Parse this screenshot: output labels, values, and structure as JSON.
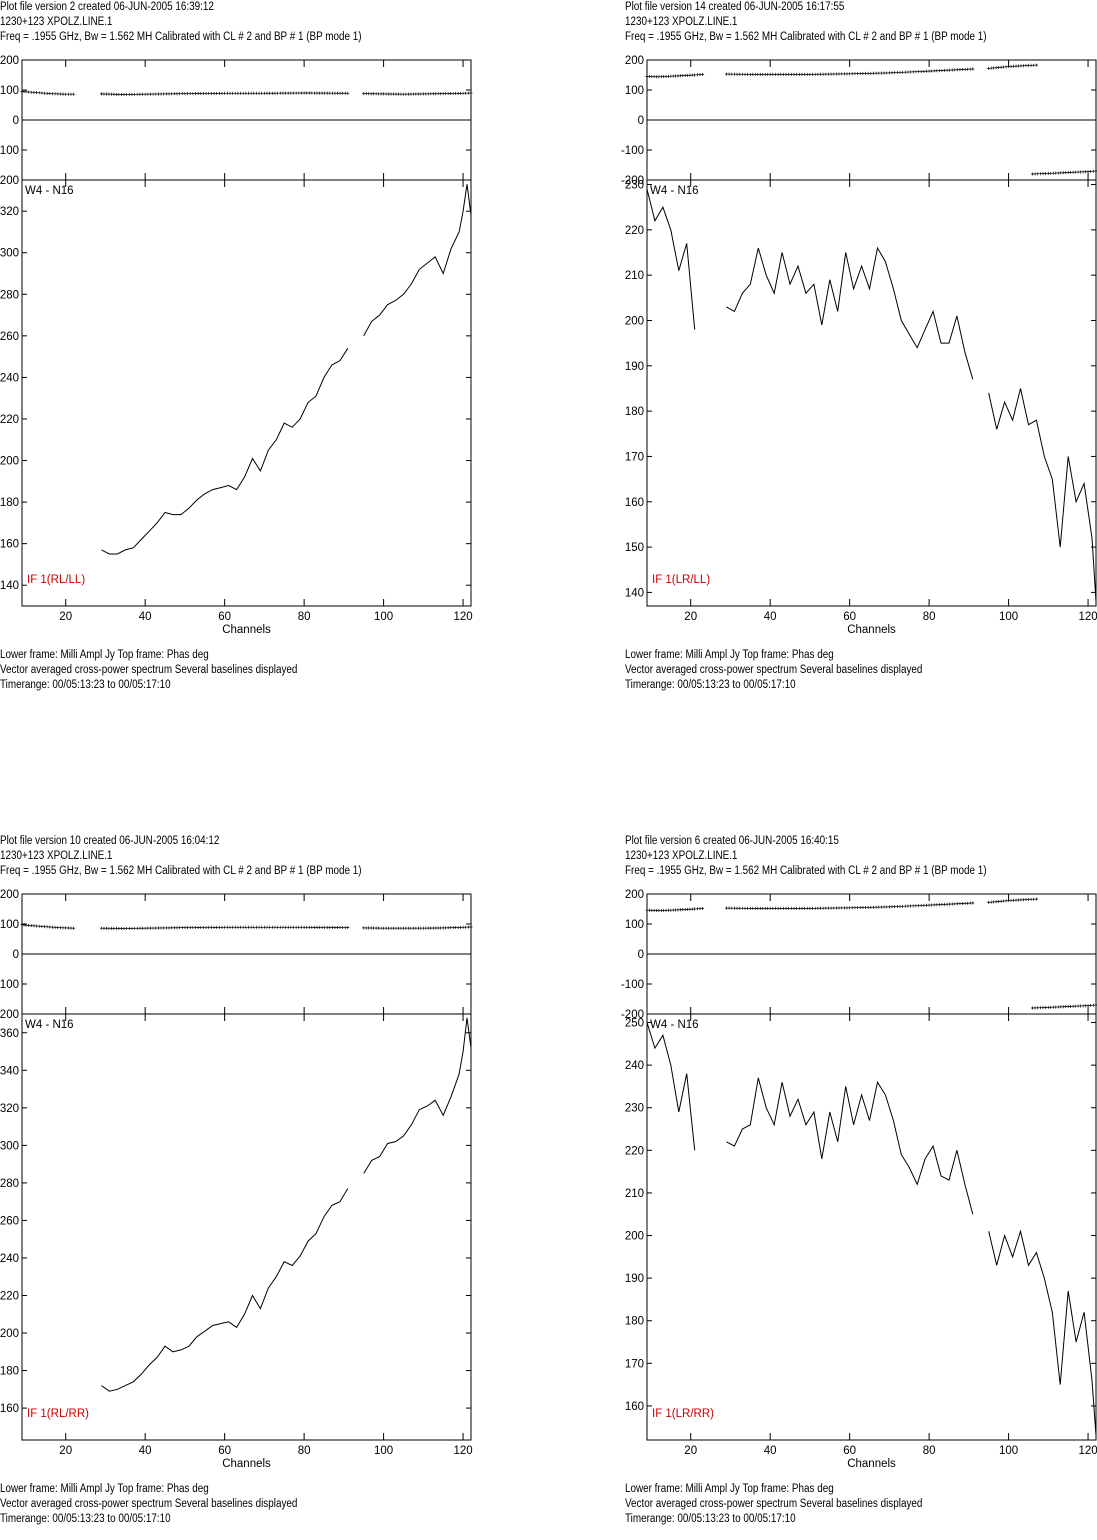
{
  "chart_data": [
    {
      "type": "line",
      "header": [
        "Plot file version 2  created 06-JUN-2005 16:39:12",
        "1230+123   XPOLZ.LINE.1",
        "Freq = .1955 GHz, Bw = 1.562 MH   Calibrated with CL # 2 and BP # 1 (BP mode 1)"
      ],
      "footer": [
        "Lower frame: Milli Ampl Jy   Top frame: Phas deg",
        "Vector averaged cross-power spectrum    Several baselines displayed",
        "Timerange: 00/05:13:23 to 00/05:17:10"
      ],
      "xlabel": "Channels",
      "xlim": [
        9,
        122
      ],
      "xticks": [
        20,
        40,
        60,
        80,
        100,
        120
      ],
      "baseline_label": "W4 - N16",
      "stokes_label": "IF 1(RL/LL)",
      "phase_frame": {
        "ylim": [
          -200,
          200
        ],
        "yticks": [
          200,
          100,
          0,
          -100,
          -200
        ],
        "segments": [
          {
            "x": [
              9,
              10,
              12,
              14,
              16,
              18,
              20,
              22
            ],
            "y": [
              95,
              94,
              92,
              90,
              88,
              87,
              86,
              86
            ]
          },
          {
            "x": [
              29,
              34,
              40,
              50,
              60,
              70,
              80,
              91
            ],
            "y": [
              87,
              85,
              86,
              88,
              89,
              89,
              90,
              89
            ]
          },
          {
            "x": [
              95,
              100,
              105,
              110,
              115,
              120,
              122
            ],
            "y": [
              88,
              87,
              86,
              87,
              88,
              89,
              90
            ]
          }
        ]
      },
      "amplitude_frame": {
        "ylim": [
          130,
          335
        ],
        "yticks": [
          320,
          300,
          280,
          260,
          240,
          220,
          200,
          180,
          160,
          140
        ],
        "segments": [
          {
            "x": [
              29,
              31,
              33,
              35,
              37,
              39,
              41,
              43,
              45,
              47,
              49,
              51,
              53,
              55,
              57,
              59,
              61,
              63,
              65,
              67,
              69,
              71,
              73,
              75,
              77,
              79,
              81,
              83,
              85,
              87,
              89,
              91
            ],
            "y": [
              157,
              155,
              155,
              157,
              158,
              162,
              166,
              170,
              175,
              174,
              174,
              177,
              181,
              184,
              186,
              187,
              188,
              186,
              192,
              201,
              195,
              205,
              210,
              218,
              216,
              220,
              228,
              231,
              240,
              246,
              248,
              254
            ]
          },
          {
            "x": [
              95,
              97,
              99,
              101,
              103,
              105,
              107,
              109,
              111,
              113,
              115,
              117,
              119,
              120,
              121,
              122
            ],
            "y": [
              260,
              267,
              270,
              275,
              277,
              280,
              285,
              292,
              295,
              298,
              290,
              302,
              310,
              320,
              333,
              318
            ]
          }
        ]
      }
    },
    {
      "type": "line",
      "header": [
        "Plot file version 14  created 06-JUN-2005 16:17:55",
        "1230+123   XPOLZ.LINE.1",
        "Freq = .1955 GHz, Bw = 1.562 MH   Calibrated with CL # 2 and BP # 1 (BP mode 1)"
      ],
      "footer": [
        "Lower frame: Milli Ampl Jy   Top frame: Phas deg",
        "Vector averaged cross-power spectrum    Several baselines displayed",
        "Timerange: 00/05:13:23 to 00/05:17:10"
      ],
      "xlabel": "Channels",
      "xlim": [
        9,
        122
      ],
      "xticks": [
        20,
        40,
        60,
        80,
        100,
        120
      ],
      "baseline_label": "W4 - N16",
      "stokes_label": "IF 1(LR/LL)",
      "phase_frame": {
        "ylim": [
          -200,
          200
        ],
        "yticks": [
          200,
          100,
          0,
          -100,
          -200
        ],
        "segments": [
          {
            "x": [
              9,
              12,
              15,
              18,
              21,
              23
            ],
            "y": [
              145,
              144,
              146,
              148,
              150,
              152
            ]
          },
          {
            "x": [
              29,
              35,
              40,
              50,
              60,
              70,
              80,
              91
            ],
            "y": [
              153,
              152,
              152,
              152,
              154,
              157,
              163,
              170
            ]
          },
          {
            "x": [
              95,
              100,
              105,
              107
            ],
            "y": [
              172,
              178,
              182,
              183
            ]
          },
          {
            "x": [
              106,
              110,
              115,
              120,
              122
            ],
            "y": [
              -180,
              -178,
              -175,
              -172,
              -170
            ]
          }
        ]
      },
      "amplitude_frame": {
        "ylim": [
          137,
          231
        ],
        "yticks": [
          230,
          220,
          210,
          200,
          190,
          180,
          170,
          160,
          150,
          140
        ],
        "segments": [
          {
            "x": [
              9,
              11,
              13,
              15,
              17,
              19,
              21
            ],
            "y": [
              229,
              222,
              225,
              220,
              211,
              217,
              198
            ]
          },
          {
            "x": [
              29,
              31,
              33,
              35,
              37,
              39,
              41,
              43,
              45,
              47,
              49,
              51,
              53,
              55,
              57,
              59,
              61,
              63,
              65,
              67,
              69,
              71,
              73,
              75,
              77,
              79,
              81,
              83,
              85,
              87,
              89,
              91
            ],
            "y": [
              203,
              202,
              206,
              208,
              216,
              210,
              206,
              215,
              208,
              212,
              206,
              208,
              199,
              209,
              202,
              215,
              207,
              212,
              207,
              216,
              213,
              207,
              200,
              197,
              194,
              198,
              202,
              195,
              195,
              201,
              193,
              187
            ]
          },
          {
            "x": [
              95,
              97,
              99,
              101,
              103,
              105,
              107,
              109,
              111,
              113,
              115,
              117,
              119,
              121,
              122
            ],
            "y": [
              184,
              176,
              182,
              178,
              185,
              177,
              178,
              170,
              165,
              150,
              170,
              160,
              164,
              152,
              138
            ]
          }
        ]
      }
    },
    {
      "type": "line",
      "header": [
        "Plot file version 10  created 06-JUN-2005 16:04:12",
        "1230+123   XPOLZ.LINE.1",
        "Freq = .1955 GHz, Bw = 1.562 MH   Calibrated with CL # 2 and BP # 1 (BP mode 1)"
      ],
      "footer": [
        "Lower frame: Milli Ampl Jy   Top frame: Phas deg",
        "Vector averaged cross-power spectrum    Several baselines displayed",
        "Timerange: 00/05:13:23 to 00/05:17:10"
      ],
      "xlabel": "Channels",
      "xlim": [
        9,
        122
      ],
      "xticks": [
        20,
        40,
        60,
        80,
        100,
        120
      ],
      "baseline_label": "W4 - N16",
      "stokes_label": "IF 1(RL/RR)",
      "phase_frame": {
        "ylim": [
          -200,
          200
        ],
        "yticks": [
          200,
          100,
          0,
          -100,
          -200
        ],
        "segments": [
          {
            "x": [
              9,
              10,
              12,
              14,
              16,
              18,
              20,
              22
            ],
            "y": [
              98,
              96,
              94,
              92,
              90,
              88,
              87,
              86
            ]
          },
          {
            "x": [
              29,
              34,
              40,
              50,
              60,
              70,
              80,
              91
            ],
            "y": [
              86,
              85,
              86,
              88,
              89,
              89,
              89,
              88
            ]
          },
          {
            "x": [
              95,
              100,
              105,
              110,
              115,
              120,
              122
            ],
            "y": [
              87,
              86,
              86,
              86,
              87,
              89,
              90
            ]
          }
        ]
      },
      "amplitude_frame": {
        "ylim": [
          143,
          370
        ],
        "yticks": [
          360,
          340,
          320,
          300,
          280,
          260,
          240,
          220,
          200,
          180,
          160
        ],
        "segments": [
          {
            "x": [
              29,
              31,
              33,
              35,
              37,
              39,
              41,
              43,
              45,
              47,
              49,
              51,
              53,
              55,
              57,
              59,
              61,
              63,
              65,
              67,
              69,
              71,
              73,
              75,
              77,
              79,
              81,
              83,
              85,
              87,
              89,
              91
            ],
            "y": [
              172,
              169,
              170,
              172,
              174,
              178,
              183,
              187,
              193,
              190,
              191,
              193,
              198,
              201,
              204,
              205,
              206,
              203,
              210,
              220,
              213,
              224,
              230,
              238,
              236,
              241,
              249,
              253,
              262,
              268,
              270,
              277
            ]
          },
          {
            "x": [
              95,
              97,
              99,
              101,
              103,
              105,
              107,
              109,
              111,
              113,
              115,
              117,
              119,
              120,
              121,
              122
            ],
            "y": [
              285,
              292,
              294,
              301,
              302,
              305,
              311,
              319,
              321,
              324,
              316,
              326,
              338,
              350,
              368,
              352
            ]
          }
        ]
      }
    },
    {
      "type": "line",
      "header": [
        "Plot file version 6  created 06-JUN-2005 16:40:15",
        "1230+123   XPOLZ.LINE.1",
        "Freq = .1955 GHz, Bw = 1.562 MH   Calibrated with CL # 2 and BP # 1 (BP mode 1)"
      ],
      "footer": [
        "Lower frame: Milli Ampl Jy   Top frame: Phas deg",
        "Vector averaged cross-power spectrum    Several baselines displayed",
        "Timerange: 00/05:13:23 to 00/05:17:10"
      ],
      "xlabel": "Channels",
      "xlim": [
        9,
        122
      ],
      "xticks": [
        20,
        40,
        60,
        80,
        100,
        120
      ],
      "baseline_label": "W4 - N16",
      "stokes_label": "IF 1(LR/RR)",
      "phase_frame": {
        "ylim": [
          -200,
          200
        ],
        "yticks": [
          200,
          100,
          0,
          -100,
          -200
        ],
        "segments": [
          {
            "x": [
              9,
              12,
              15,
              18,
              21,
              23
            ],
            "y": [
              146,
              145,
              146,
              148,
              150,
              152
            ]
          },
          {
            "x": [
              29,
              35,
              40,
              50,
              60,
              70,
              80,
              91
            ],
            "y": [
              153,
              152,
              152,
              152,
              154,
              157,
              163,
              170
            ]
          },
          {
            "x": [
              95,
              100,
              105,
              107
            ],
            "y": [
              172,
              178,
              182,
              183
            ]
          },
          {
            "x": [
              106,
              110,
              115,
              120,
              122
            ],
            "y": [
              -180,
              -178,
              -175,
              -172,
              -170
            ]
          }
        ]
      },
      "amplitude_frame": {
        "ylim": [
          152,
          252
        ],
        "yticks": [
          250,
          240,
          230,
          220,
          210,
          200,
          190,
          180,
          170,
          160
        ],
        "segments": [
          {
            "x": [
              9,
              11,
              13,
              15,
              17,
              19,
              21
            ],
            "y": [
              250,
              244,
              247,
              240,
              229,
              238,
              220
            ]
          },
          {
            "x": [
              29,
              31,
              33,
              35,
              37,
              39,
              41,
              43,
              45,
              47,
              49,
              51,
              53,
              55,
              57,
              59,
              61,
              63,
              65,
              67,
              69,
              71,
              73,
              75,
              77,
              79,
              81,
              83,
              85,
              87,
              89,
              91
            ],
            "y": [
              222,
              221,
              225,
              226,
              237,
              230,
              226,
              236,
              228,
              232,
              226,
              229,
              218,
              229,
              222,
              235,
              226,
              233,
              227,
              236,
              233,
              227,
              219,
              216,
              212,
              218,
              221,
              214,
              213,
              220,
              212,
              205
            ]
          },
          {
            "x": [
              95,
              97,
              99,
              101,
              103,
              105,
              107,
              109,
              111,
              113,
              115,
              117,
              119,
              121,
              122
            ],
            "y": [
              201,
              193,
              200,
              195,
              201,
              193,
              196,
              190,
              182,
              165,
              187,
              175,
              182,
              166,
              153
            ]
          }
        ]
      }
    }
  ],
  "colors": {
    "ink": "#000000",
    "stokes_label": "#cc0000",
    "background": "#ffffff"
  }
}
